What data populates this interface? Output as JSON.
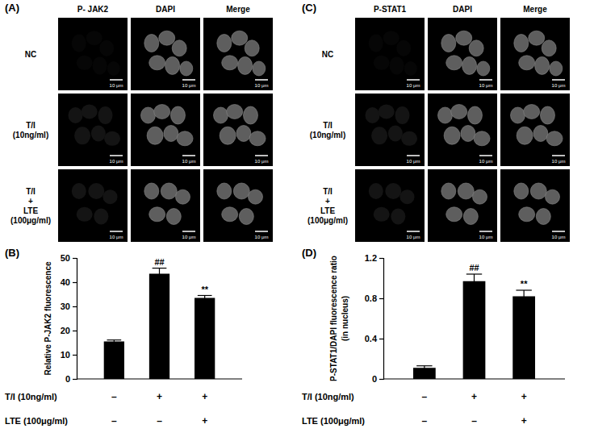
{
  "chart_data": [
    {
      "type": "bar",
      "panel": "(B)",
      "y_label": "Relative P-JAK2 fluorescence",
      "categories": [
        null,
        null,
        null
      ],
      "values": [
        15.5,
        43.5,
        33.5
      ],
      "errors": [
        0.6,
        2.3,
        1.0
      ],
      "annotations": [
        null,
        "##",
        "**"
      ],
      "color": "#000000",
      "ylim": [
        0,
        50
      ],
      "yticks": [
        0,
        10,
        20,
        30,
        40,
        50
      ],
      "treatments": [
        {
          "label": "T/I (10ng/ml)",
          "signs": [
            "–",
            "+",
            "+"
          ]
        },
        {
          "label": "LTE (100μg/ml)",
          "signs": [
            "–",
            "–",
            "+"
          ]
        }
      ]
    },
    {
      "type": "bar",
      "panel": "(D)",
      "y_label": "P-STAT1/DAPI fluorescence ratio (in nucleus)",
      "categories": [
        null,
        null,
        null
      ],
      "values": [
        0.11,
        0.97,
        0.82
      ],
      "errors": [
        0.02,
        0.07,
        0.06
      ],
      "annotations": [
        null,
        "##",
        "**"
      ],
      "color": "#000000",
      "ylim": [
        0,
        1.2
      ],
      "yticks": [
        0,
        0.4,
        0.8,
        1.2
      ],
      "treatments": [
        {
          "label": "T/I (10ng/ml)",
          "signs": [
            "–",
            "+",
            "+"
          ]
        },
        {
          "label": "LTE (100μg/ml)",
          "signs": [
            "–",
            "–",
            "+"
          ]
        }
      ]
    }
  ],
  "micrographs": [
    {
      "panel": "(A)",
      "columns": [
        "P- JAK2",
        "DAPI",
        "Merge"
      ],
      "rows": [
        [
          "NC"
        ],
        [
          "T/I",
          "(10ng/ml)"
        ],
        [
          "T/I",
          "+",
          "LTE",
          "(100μg/ml)"
        ]
      ],
      "scale_bar": "10 μm"
    },
    {
      "panel": "(C)",
      "columns": [
        "P-STAT1",
        "DAPI",
        "Merge"
      ],
      "rows": [
        [
          "NC"
        ],
        [
          "T/I",
          "(10ng/ml)"
        ],
        [
          "T/I",
          "+",
          "LTE",
          "(100μg/ml)"
        ]
      ],
      "scale_bar": "10 μm"
    }
  ]
}
